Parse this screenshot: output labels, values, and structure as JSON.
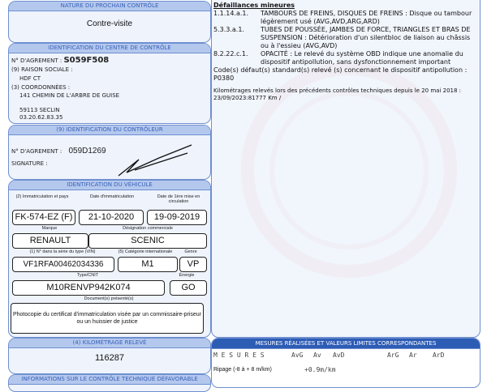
{
  "next_control": {
    "header": "NATURE DU PROCHAIN CONTRÔLE",
    "value": "Contre-visite"
  },
  "center": {
    "header": "IDENTIFICATION DU CENTRE DE CONTRÔLE",
    "agrement_label": "N° D'AGREMENT :",
    "agrement": "S059F508",
    "raison_label": "(9) RAISON SOCIALE :",
    "raison": "HDF CT",
    "coord_label": "(3) COORDONNÉES :",
    "address": "141 CHEMIN DE L'ARBRE DE GUISE",
    "city": "59113 SECLIN",
    "phone": "03.20.62.83.35"
  },
  "controller": {
    "header": "(9) IDENTIFICATION DU CONTRÔLEUR",
    "agrement_label": "N° D'AGREMENT :",
    "agrement": "059D1269",
    "signature_label": "SIGNATURE :"
  },
  "vehicle": {
    "header": "IDENTIFICATION DU VÉHICULE",
    "immat_label": "(2) Immatriculation et pays",
    "immat": "FK-574-EZ (F)",
    "date_immat_label": "Date d'immatriculation",
    "date_immat": "21-10-2020",
    "first_date_label": "Date de 1ère mise en circulation",
    "first_date": "19-09-2019",
    "marque_label": "Marque",
    "marque": "RENAULT",
    "designation_label": "Désignation commerciale",
    "designation": "SCENIC",
    "vin_label": "(1) N° dans la série du type (VIN)",
    "vin": "VF1RFA00462034336",
    "cat_label": "(5) Catégorie internationale",
    "cat": "M1",
    "genre_label": "Genre",
    "genre": "VP",
    "type_label": "Type/CNIT",
    "type": "M10RENVP942K074",
    "energie_label": "Énergie",
    "energie": "GO",
    "docs_label": "Document(s) présenté(s)",
    "docs": "Photocopie du certificat d'immatriculation visée par un commissaire-priseur ou un huissier de justice"
  },
  "km": {
    "header": "(4) KILOMÉTRAGE RELEVÉ",
    "value": "116287"
  },
  "info_header": "INFORMATIONS SUR LE CONTRÔLE TECHNIQUE DÉFAVORABLE",
  "defects": {
    "title": "Défaillances mineures",
    "items": [
      {
        "code": "1.1.14.a.1.",
        "text": "TAMBOURS DE FREINS, DISQUES DE FREINS : Disque ou tambour légèrement usé (AVG,AVD,ARG,ARD)"
      },
      {
        "code": "5.3.3.a.1.",
        "text": "TUBES DE POUSSÉE, JAMBES DE FORCE, TRIANGLES ET BRAS DE SUSPENSION : Détérioration d'un silentbloc de liaison au châssis ou à l'essieu (AVG,AVD)"
      },
      {
        "code": "8.2.22.c.1.",
        "text": "OPACITÉ : Le relevé du système OBD indique une anomalie du dispositif antipollution, sans dysfonctionnement important"
      }
    ],
    "codes": "Code(s) défaut(s) standard(s) relevé (s) concernant le dispositif antipollution : P0380",
    "km_history": "Kilométrages relevés lors des précédents contrôles techniques depuis le 20 mai 2018 : 23/09/2023:81777 Km /"
  },
  "measures": {
    "header": "MESURES RÉALISÉES ET VALEURS LIMITES CORRESPONDANTES",
    "title": "M E S U R E S",
    "cols": [
      "AvG",
      "Av",
      "AvD",
      "ArG",
      "Ar",
      "ArD"
    ],
    "ripage_label": "Ripage (-8 à + 8 m/km)",
    "ripage": "+0.9m/km"
  },
  "colors": {
    "panel": "#eef3fc",
    "header": "#b4c8ee",
    "header_dark": "#2d5cb5",
    "watermark": "#e25a5a"
  }
}
